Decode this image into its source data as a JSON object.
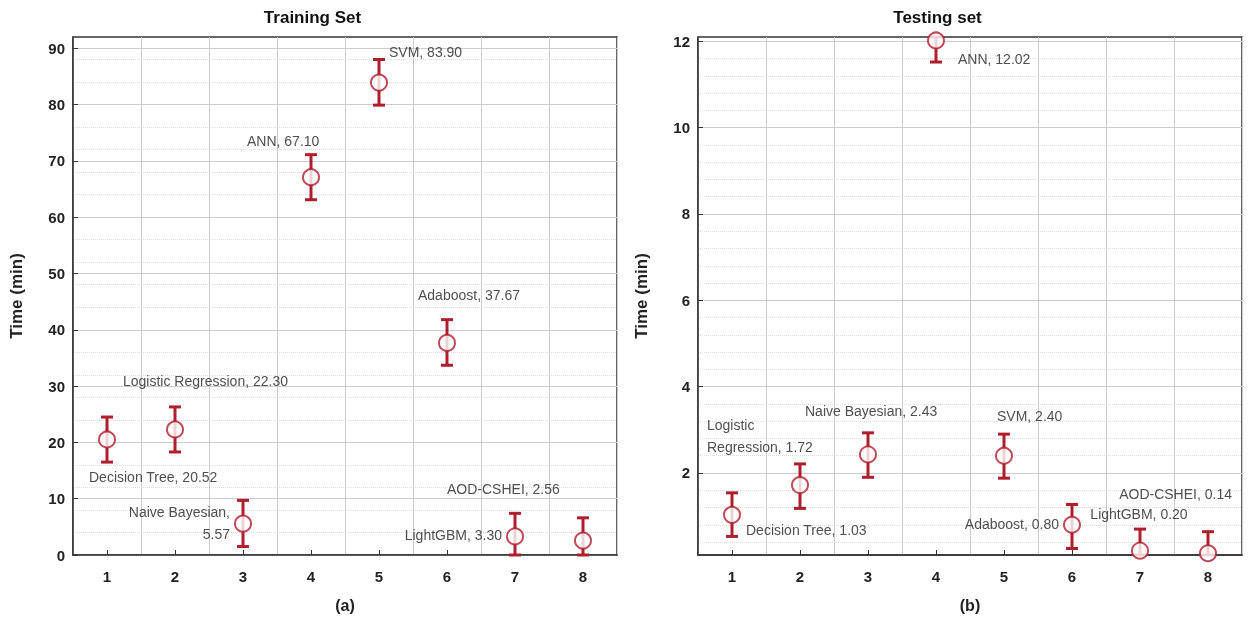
{
  "chart_data": [
    {
      "type": "scatter",
      "title": "Training Set",
      "xlabel": "(a)",
      "ylabel": "Time (min)",
      "categories": [
        "1",
        "2",
        "3",
        "4",
        "5",
        "6",
        "7",
        "8"
      ],
      "series": [
        {
          "color": "#ae1e2d",
          "values": [
            20.52,
            22.3,
            5.57,
            67.1,
            83.9,
            37.67,
            3.3,
            2.56
          ],
          "errors": [
            [
              16.5,
              24.5
            ],
            [
              18.3,
              26.3
            ],
            [
              1.5,
              9.7
            ],
            [
              63.1,
              71.1
            ],
            [
              79.9,
              88
            ],
            [
              33.7,
              41.8
            ],
            [
              0,
              7.4
            ],
            [
              0,
              6.6
            ]
          ],
          "value_labels": [
            "Decision Tree, 20.52",
            "Logistic Regression, 22.30",
            "Naive Bayesian,\n5.57",
            "ANN, 67.10",
            "SVM, 83.90",
            "Adaboost, 37.67",
            "LightGBM, 3.30",
            "AOD-CSHEI, 2.56"
          ]
        }
      ],
      "ylim": [
        0,
        92
      ],
      "yticks": [
        0,
        10,
        20,
        30,
        40,
        50,
        60,
        70,
        80,
        90
      ],
      "grid": true,
      "marker": "circle"
    },
    {
      "type": "scatter",
      "title": "Testing set",
      "xlabel": "(b)",
      "ylabel": "Time (min)",
      "categories": [
        "1",
        "2",
        "3",
        "4",
        "5",
        "6",
        "7",
        "8"
      ],
      "series": [
        {
          "color": "#ae1e2d",
          "values": [
            1.03,
            1.72,
            2.43,
            12.02,
            2.4,
            0.8,
            0.2,
            0.14
          ],
          "errors": [
            [
              0.53,
              1.54
            ],
            [
              1.18,
              2.21
            ],
            [
              1.9,
              2.93
            ],
            [
              11.52,
              12.1
            ],
            [
              1.88,
              2.9
            ],
            [
              0.25,
              1.27
            ],
            [
              0.1,
              0.7
            ],
            [
              0.1,
              0.64
            ]
          ],
          "value_labels": [
            "Decision Tree, 1.03",
            "Logistic\nRegression, 1.72",
            "Naive Bayesian, 2.43",
            "ANN, 12.02",
            "SVM, 2.40",
            "Adaboost, 0.80",
            "LightGBM, 0.20",
            "AOD-CSHEI, 0.14"
          ]
        }
      ],
      "ylim": [
        0.1,
        12.1
      ],
      "yticks": [
        2,
        4,
        6,
        8,
        10,
        12
      ],
      "grid": true,
      "marker": "circle"
    }
  ]
}
